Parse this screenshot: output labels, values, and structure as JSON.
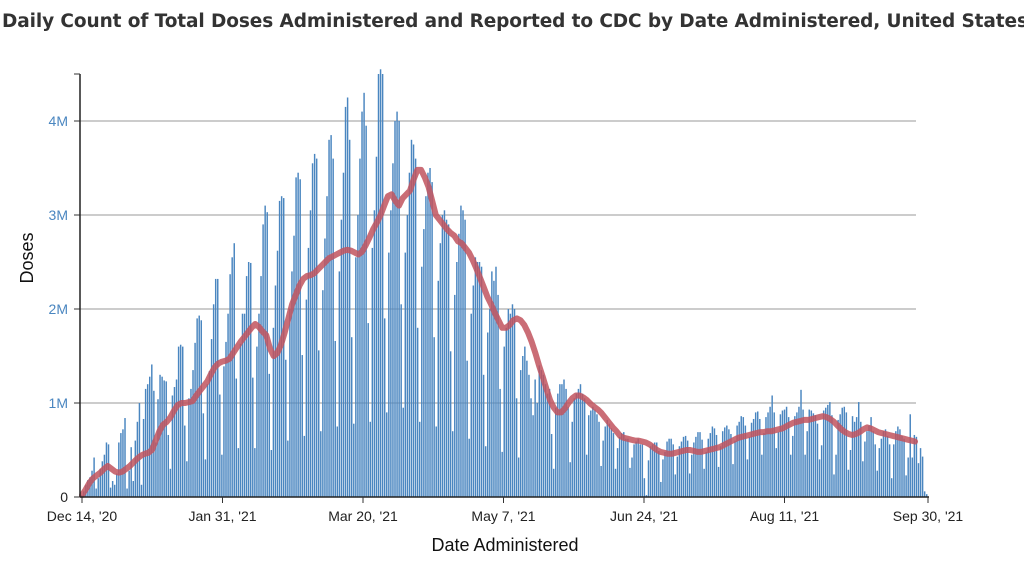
{
  "chart_data": {
    "type": "bar",
    "title": "Daily Count of Total Doses Administered and Reported to CDC by Date Administered, United States",
    "xlabel": "Date Administered",
    "ylabel": "Doses",
    "x_range": [
      "Dec 14, '20",
      "Sep 30, '21"
    ],
    "ylim": [
      0,
      4500000
    ],
    "y_ticks": [
      {
        "value": 0,
        "label": "0"
      },
      {
        "value": 1000000,
        "label": "1M"
      },
      {
        "value": 2000000,
        "label": "2M"
      },
      {
        "value": 3000000,
        "label": "3M"
      },
      {
        "value": 4000000,
        "label": "4M"
      }
    ],
    "x_ticks": [
      "Dec 14, '20",
      "Jan 31, '21",
      "Mar 20, '21",
      "May 7, '21",
      "Jun 24, '21",
      "Aug 11, '21",
      "Sep 30, '21"
    ],
    "grid": "horizontal",
    "series": [
      {
        "kind": "bar",
        "color": "#4a86c0",
        "values": [
          20000,
          60000,
          130000,
          180000,
          210000,
          280000,
          420000,
          90000,
          200000,
          300000,
          380000,
          450000,
          580000,
          560000,
          100000,
          170000,
          130000,
          250000,
          580000,
          680000,
          720000,
          840000,
          90000,
          280000,
          530000,
          170000,
          600000,
          800000,
          1000000,
          130000,
          830000,
          1150000,
          1200000,
          1280000,
          1410000,
          1130000,
          580000,
          1040000,
          1300000,
          1280000,
          1240000,
          1230000,
          660000,
          300000,
          1080000,
          1170000,
          1250000,
          1600000,
          1620000,
          1600000,
          760000,
          380000,
          1050000,
          1150000,
          1350000,
          1640000,
          1900000,
          1930000,
          1880000,
          890000,
          400000,
          1200000,
          1340000,
          1680000,
          2050000,
          2320000,
          2320000,
          1090000,
          450000,
          1390000,
          1650000,
          1950000,
          2370000,
          2550000,
          2700000,
          1260000,
          520000,
          1630000,
          1950000,
          1950000,
          2350000,
          2500000,
          2490000,
          1270000,
          520000,
          1600000,
          1950000,
          2350000,
          2900000,
          3100000,
          3030000,
          1310000,
          500000,
          1800000,
          2250000,
          2620000,
          3150000,
          3200000,
          3180000,
          1460000,
          600000,
          2000000,
          2400000,
          2780000,
          3400000,
          3450000,
          3380000,
          1510000,
          650000,
          2100000,
          2650000,
          3050000,
          3550000,
          3650000,
          3600000,
          1560000,
          700000,
          2200000,
          2750000,
          3200000,
          3800000,
          3850000,
          3600000,
          1660000,
          750000,
          2400000,
          2950000,
          3450000,
          4150000,
          4250000,
          3800000,
          1700000,
          780000,
          2550000,
          3000000,
          3600000,
          4100000,
          4300000,
          3950000,
          1850000,
          800000,
          2650000,
          3050000,
          3620000,
          4500000,
          4550000,
          4500000,
          1900000,
          900000,
          2600000,
          3050000,
          3550000,
          4000000,
          4100000,
          4000000,
          2050000,
          950000,
          2600000,
          3000000,
          3450000,
          3800000,
          3750000,
          3600000,
          1800000,
          800000,
          2450000,
          2850000,
          3200000,
          3450000,
          3500000,
          3350000,
          1700000,
          750000,
          2300000,
          2700000,
          3000000,
          3050000,
          2950000,
          2900000,
          1550000,
          700000,
          2150000,
          2500000,
          2800000,
          3100000,
          3050000,
          2950000,
          1450000,
          620000,
          1950000,
          2250000,
          2550000,
          2500000,
          2500000,
          2450000,
          1300000,
          540000,
          1750000,
          2000000,
          2400000,
          2300000,
          2450000,
          2150000,
          1150000,
          480000,
          1600000,
          1800000,
          2000000,
          1950000,
          2050000,
          2000000,
          1050000,
          420000,
          1350000,
          1500000,
          1600000,
          1450000,
          1300000,
          1050000,
          870000,
          1250000,
          1000000,
          1400000,
          1350000,
          1300000,
          1200000,
          1100000,
          1150000,
          670000,
          300000,
          950000,
          1100000,
          1200000,
          1200000,
          1250000,
          1150000,
          960000,
          370000,
          800000,
          1050000,
          1100000,
          1150000,
          1200000,
          1100000,
          1050000,
          450000,
          870000,
          920000,
          960000,
          930000,
          880000,
          800000,
          330000,
          600000,
          750000,
          820000,
          780000,
          730000,
          680000,
          300000,
          520000,
          640000,
          680000,
          690000,
          620000,
          620000,
          310000,
          420000,
          560000,
          590000,
          620000,
          560000,
          560000,
          200000,
          20000,
          390000,
          540000,
          560000,
          580000,
          580000,
          490000,
          160000,
          400000,
          480000,
          590000,
          620000,
          620000,
          560000,
          240000,
          430000,
          540000,
          590000,
          640000,
          650000,
          600000,
          250000,
          450000,
          580000,
          640000,
          690000,
          690000,
          610000,
          300000,
          480000,
          620000,
          680000,
          750000,
          730000,
          660000,
          320000,
          540000,
          700000,
          740000,
          760000,
          720000,
          670000,
          350000,
          600000,
          760000,
          800000,
          860000,
          850000,
          760000,
          400000,
          640000,
          790000,
          830000,
          900000,
          910000,
          830000,
          450000,
          680000,
          850000,
          900000,
          960000,
          1080000,
          900000,
          520000,
          690000,
          880000,
          920000,
          930000,
          960000,
          850000,
          450000,
          650000,
          860000,
          900000,
          960000,
          1140000,
          930000,
          450000,
          700000,
          930000,
          920000,
          890000,
          870000,
          780000,
          400000,
          550000,
          920000,
          950000,
          980000,
          1010000,
          870000,
          240000,
          450000,
          820000,
          880000,
          950000,
          960000,
          900000,
          290000,
          500000,
          860000,
          800000,
          850000,
          1010000,
          800000,
          380000,
          590000,
          700000,
          760000,
          850000,
          700000,
          560000,
          280000,
          520000,
          620000,
          700000,
          720000,
          650000,
          560000,
          200000,
          560000,
          700000,
          750000,
          720000,
          650000,
          620000,
          230000,
          420000,
          880000,
          420000,
          660000,
          640000,
          360000,
          520000,
          430000,
          60000,
          30000
        ]
      },
      {
        "kind": "line",
        "color": "#c1545e",
        "values": [
          20000,
          80000,
          150000,
          200000,
          230000,
          260000,
          300000,
          330000,
          300000,
          270000,
          260000,
          270000,
          300000,
          330000,
          370000,
          410000,
          440000,
          460000,
          470000,
          500000,
          600000,
          700000,
          770000,
          800000,
          850000,
          920000,
          980000,
          1000000,
          1000000,
          1010000,
          1020000,
          1080000,
          1130000,
          1180000,
          1230000,
          1310000,
          1380000,
          1420000,
          1440000,
          1450000,
          1470000,
          1530000,
          1590000,
          1650000,
          1700000,
          1750000,
          1800000,
          1840000,
          1810000,
          1760000,
          1720000,
          1580000,
          1500000,
          1530000,
          1620000,
          1750000,
          1900000,
          2050000,
          2150000,
          2250000,
          2320000,
          2350000,
          2360000,
          2380000,
          2420000,
          2460000,
          2500000,
          2540000,
          2560000,
          2580000,
          2600000,
          2620000,
          2630000,
          2620000,
          2600000,
          2580000,
          2610000,
          2680000,
          2760000,
          2850000,
          2920000,
          3000000,
          3100000,
          3200000,
          3220000,
          3150000,
          3100000,
          3180000,
          3220000,
          3260000,
          3380000,
          3480000,
          3480000,
          3400000,
          3300000,
          3150000,
          3000000,
          2950000,
          2900000,
          2850000,
          2810000,
          2780000,
          2720000,
          2700000,
          2650000,
          2600000,
          2520000,
          2430000,
          2330000,
          2230000,
          2130000,
          2050000,
          1960000,
          1880000,
          1800000,
          1800000,
          1830000,
          1880000,
          1900000,
          1880000,
          1830000,
          1750000,
          1650000,
          1530000,
          1400000,
          1280000,
          1150000,
          1030000,
          950000,
          900000,
          900000,
          940000,
          1000000,
          1050000,
          1080000,
          1080000,
          1060000,
          1030000,
          990000,
          960000,
          930000,
          890000,
          840000,
          790000,
          740000,
          700000,
          650000,
          630000,
          620000,
          610000,
          600000,
          600000,
          590000,
          580000,
          560000,
          530000,
          500000,
          480000,
          470000,
          460000,
          460000,
          470000,
          480000,
          490000,
          500000,
          500000,
          490000,
          480000,
          480000,
          490000,
          500000,
          510000,
          520000,
          530000,
          550000,
          570000,
          590000,
          610000,
          630000,
          640000,
          650000,
          660000,
          670000,
          680000,
          690000,
          690000,
          700000,
          700000,
          710000,
          720000,
          730000,
          750000,
          770000,
          790000,
          800000,
          810000,
          820000,
          820000,
          830000,
          840000,
          850000,
          860000,
          850000,
          830000,
          800000,
          760000,
          720000,
          690000,
          670000,
          660000,
          670000,
          690000,
          720000,
          740000,
          730000,
          710000,
          690000,
          680000,
          670000,
          660000,
          650000,
          640000,
          630000,
          620000,
          610000,
          600000,
          590000
        ]
      }
    ]
  }
}
